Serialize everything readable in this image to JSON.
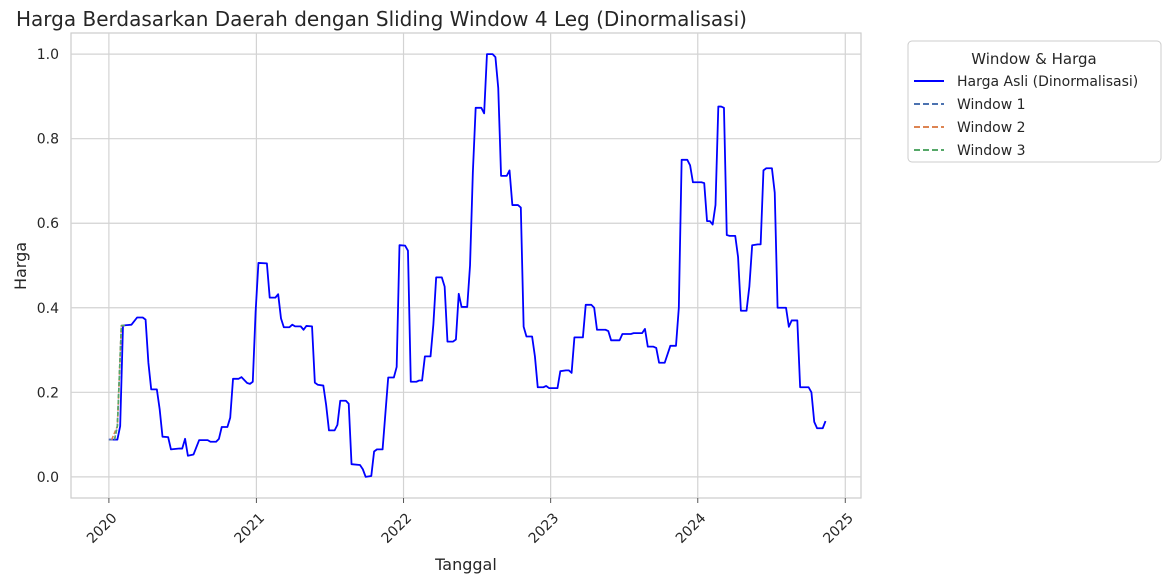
{
  "chart_data": {
    "type": "line",
    "title": "Harga Berdasarkan Daerah dengan Sliding Window 4 Leg (Dinormalisasi)",
    "xlabel": "Tanggal",
    "ylabel": "Harga",
    "xlim": [
      "2019-09-29",
      "2025-02-09"
    ],
    "ylim": [
      -0.05,
      1.05
    ],
    "x_ticks": [
      "2020",
      "2021",
      "2022",
      "2023",
      "2024",
      "2025"
    ],
    "y_ticks": [
      "0.0",
      "0.2",
      "0.4",
      "0.6",
      "0.8",
      "1.0"
    ],
    "grid": true,
    "legend": {
      "title": "Window & Harga",
      "placement": "outside-top-right"
    },
    "series": [
      {
        "name": "Harga Asli (Dinormalisasi)",
        "color": "#0000ff",
        "style": "solid",
        "points": [
          [
            "2020-01-01",
            0.088
          ],
          [
            "2020-01-22",
            0.088
          ],
          [
            "2020-01-29",
            0.12
          ],
          [
            "2020-02-05",
            0.358
          ],
          [
            "2020-02-26",
            0.36
          ],
          [
            "2020-03-11",
            0.377
          ],
          [
            "2020-03-25",
            0.377
          ],
          [
            "2020-04-01",
            0.372
          ],
          [
            "2020-04-08",
            0.27
          ],
          [
            "2020-04-15",
            0.207
          ],
          [
            "2020-04-29",
            0.207
          ],
          [
            "2020-05-06",
            0.16
          ],
          [
            "2020-05-13",
            0.095
          ],
          [
            "2020-05-27",
            0.094
          ],
          [
            "2020-06-03",
            0.065
          ],
          [
            "2020-06-24",
            0.067
          ],
          [
            "2020-07-01",
            0.067
          ],
          [
            "2020-07-08",
            0.09
          ],
          [
            "2020-07-15",
            0.05
          ],
          [
            "2020-07-29",
            0.053
          ],
          [
            "2020-08-12",
            0.087
          ],
          [
            "2020-09-02",
            0.087
          ],
          [
            "2020-09-09",
            0.083
          ],
          [
            "2020-09-23",
            0.083
          ],
          [
            "2020-09-30",
            0.09
          ],
          [
            "2020-10-07",
            0.118
          ],
          [
            "2020-10-21",
            0.118
          ],
          [
            "2020-10-28",
            0.14
          ],
          [
            "2020-11-04",
            0.232
          ],
          [
            "2020-11-18",
            0.232
          ],
          [
            "2020-11-25",
            0.236
          ],
          [
            "2020-12-09",
            0.222
          ],
          [
            "2020-12-16",
            0.22
          ],
          [
            "2020-12-23",
            0.225
          ],
          [
            "2020-12-30",
            0.39
          ],
          [
            "2021-01-06",
            0.506
          ],
          [
            "2021-01-27",
            0.505
          ],
          [
            "2021-02-03",
            0.424
          ],
          [
            "2021-02-17",
            0.424
          ],
          [
            "2021-02-24",
            0.432
          ],
          [
            "2021-03-03",
            0.375
          ],
          [
            "2021-03-10",
            0.354
          ],
          [
            "2021-03-24",
            0.354
          ],
          [
            "2021-03-31",
            0.36
          ],
          [
            "2021-04-07",
            0.356
          ],
          [
            "2021-04-21",
            0.356
          ],
          [
            "2021-04-28",
            0.348
          ],
          [
            "2021-05-05",
            0.357
          ],
          [
            "2021-05-19",
            0.356
          ],
          [
            "2021-05-26",
            0.223
          ],
          [
            "2021-06-02",
            0.218
          ],
          [
            "2021-06-16",
            0.216
          ],
          [
            "2021-06-23",
            0.17
          ],
          [
            "2021-06-30",
            0.11
          ],
          [
            "2021-07-14",
            0.11
          ],
          [
            "2021-07-21",
            0.123
          ],
          [
            "2021-07-28",
            0.18
          ],
          [
            "2021-08-11",
            0.18
          ],
          [
            "2021-08-18",
            0.173
          ],
          [
            "2021-08-25",
            0.03
          ],
          [
            "2021-09-15",
            0.028
          ],
          [
            "2021-09-22",
            0.018
          ],
          [
            "2021-09-29",
            0.0
          ],
          [
            "2021-10-13",
            0.002
          ],
          [
            "2021-10-20",
            0.06
          ],
          [
            "2021-10-27",
            0.065
          ],
          [
            "2021-11-10",
            0.065
          ],
          [
            "2021-11-17",
            0.15
          ],
          [
            "2021-11-24",
            0.235
          ],
          [
            "2021-12-08",
            0.235
          ],
          [
            "2021-12-15",
            0.26
          ],
          [
            "2021-12-22",
            0.548
          ],
          [
            "2022-01-05",
            0.547
          ],
          [
            "2022-01-12",
            0.535
          ],
          [
            "2022-01-19",
            0.225
          ],
          [
            "2022-02-02",
            0.225
          ],
          [
            "2022-02-09",
            0.228
          ],
          [
            "2022-02-16",
            0.228
          ],
          [
            "2022-02-23",
            0.285
          ],
          [
            "2022-03-09",
            0.285
          ],
          [
            "2022-03-16",
            0.36
          ],
          [
            "2022-03-23",
            0.472
          ],
          [
            "2022-04-06",
            0.472
          ],
          [
            "2022-04-13",
            0.45
          ],
          [
            "2022-04-20",
            0.32
          ],
          [
            "2022-05-04",
            0.32
          ],
          [
            "2022-05-11",
            0.325
          ],
          [
            "2022-05-18",
            0.433
          ],
          [
            "2022-05-25",
            0.402
          ],
          [
            "2022-06-08",
            0.402
          ],
          [
            "2022-06-15",
            0.5
          ],
          [
            "2022-06-22",
            0.72
          ],
          [
            "2022-06-29",
            0.873
          ],
          [
            "2022-07-13",
            0.873
          ],
          [
            "2022-07-20",
            0.86
          ],
          [
            "2022-07-27",
            1.0
          ],
          [
            "2022-08-10",
            1.0
          ],
          [
            "2022-08-17",
            0.993
          ],
          [
            "2022-08-24",
            0.92
          ],
          [
            "2022-08-31",
            0.712
          ],
          [
            "2022-09-14",
            0.712
          ],
          [
            "2022-09-21",
            0.725
          ],
          [
            "2022-09-28",
            0.643
          ],
          [
            "2022-10-12",
            0.643
          ],
          [
            "2022-10-19",
            0.637
          ],
          [
            "2022-10-26",
            0.355
          ],
          [
            "2022-11-02",
            0.332
          ],
          [
            "2022-11-16",
            0.332
          ],
          [
            "2022-11-23",
            0.285
          ],
          [
            "2022-11-30",
            0.212
          ],
          [
            "2022-12-14",
            0.212
          ],
          [
            "2022-12-21",
            0.215
          ],
          [
            "2022-12-28",
            0.21
          ],
          [
            "2023-01-18",
            0.21
          ],
          [
            "2023-01-25",
            0.25
          ],
          [
            "2023-02-08",
            0.252
          ],
          [
            "2023-02-15",
            0.252
          ],
          [
            "2023-02-22",
            0.246
          ],
          [
            "2023-03-01",
            0.33
          ],
          [
            "2023-03-22",
            0.33
          ],
          [
            "2023-03-29",
            0.407
          ],
          [
            "2023-04-12",
            0.407
          ],
          [
            "2023-04-19",
            0.4
          ],
          [
            "2023-04-26",
            0.348
          ],
          [
            "2023-05-17",
            0.348
          ],
          [
            "2023-05-24",
            0.345
          ],
          [
            "2023-05-31",
            0.323
          ],
          [
            "2023-06-21",
            0.323
          ],
          [
            "2023-06-28",
            0.338
          ],
          [
            "2023-07-19",
            0.338
          ],
          [
            "2023-07-26",
            0.34
          ],
          [
            "2023-08-16",
            0.34
          ],
          [
            "2023-08-23",
            0.35
          ],
          [
            "2023-08-30",
            0.308
          ],
          [
            "2023-09-13",
            0.308
          ],
          [
            "2023-09-20",
            0.305
          ],
          [
            "2023-09-27",
            0.27
          ],
          [
            "2023-10-11",
            0.27
          ],
          [
            "2023-10-25",
            0.31
          ],
          [
            "2023-11-08",
            0.31
          ],
          [
            "2023-11-15",
            0.4
          ],
          [
            "2023-11-22",
            0.75
          ],
          [
            "2023-12-06",
            0.75
          ],
          [
            "2023-12-13",
            0.737
          ],
          [
            "2023-12-20",
            0.697
          ],
          [
            "2024-01-10",
            0.697
          ],
          [
            "2024-01-17",
            0.695
          ],
          [
            "2024-01-24",
            0.605
          ],
          [
            "2024-01-31",
            0.605
          ],
          [
            "2024-02-07",
            0.597
          ],
          [
            "2024-02-14",
            0.643
          ],
          [
            "2024-02-21",
            0.876
          ],
          [
            "2024-02-28",
            0.876
          ],
          [
            "2024-03-06",
            0.873
          ],
          [
            "2024-03-13",
            0.572
          ],
          [
            "2024-03-20",
            0.57
          ],
          [
            "2024-04-03",
            0.57
          ],
          [
            "2024-04-10",
            0.52
          ],
          [
            "2024-04-17",
            0.393
          ],
          [
            "2024-05-01",
            0.393
          ],
          [
            "2024-05-08",
            0.45
          ],
          [
            "2024-05-15",
            0.548
          ],
          [
            "2024-05-29",
            0.55
          ],
          [
            "2024-06-05",
            0.55
          ],
          [
            "2024-06-12",
            0.725
          ],
          [
            "2024-06-19",
            0.73
          ],
          [
            "2024-07-03",
            0.73
          ],
          [
            "2024-07-10",
            0.672
          ],
          [
            "2024-07-17",
            0.4
          ],
          [
            "2024-07-31",
            0.4
          ],
          [
            "2024-08-07",
            0.4
          ],
          [
            "2024-08-14",
            0.355
          ],
          [
            "2024-08-21",
            0.37
          ],
          [
            "2024-09-04",
            0.37
          ],
          [
            "2024-09-11",
            0.212
          ],
          [
            "2024-10-02",
            0.212
          ],
          [
            "2024-10-09",
            0.2
          ],
          [
            "2024-10-16",
            0.13
          ],
          [
            "2024-10-23",
            0.115
          ],
          [
            "2024-11-06",
            0.115
          ],
          [
            "2024-11-13",
            0.132
          ]
        ]
      },
      {
        "name": "Window 1",
        "color": "#4c72b0",
        "style": "dashed",
        "points": [
          [
            "2020-01-01",
            0.088
          ],
          [
            "2020-01-15",
            0.088
          ],
          [
            "2020-01-22",
            0.12
          ],
          [
            "2020-02-01",
            0.358
          ]
        ]
      },
      {
        "name": "Window 2",
        "color": "#dd8452",
        "style": "dashed",
        "points": [
          [
            "2020-01-08",
            0.088
          ],
          [
            "2020-01-22",
            0.12
          ],
          [
            "2020-02-01",
            0.358
          ],
          [
            "2020-02-08",
            0.358
          ]
        ]
      },
      {
        "name": "Window 3",
        "color": "#55a868",
        "style": "dashed",
        "points": [
          [
            "2020-01-15",
            0.088
          ],
          [
            "2020-01-22",
            0.12
          ],
          [
            "2020-02-01",
            0.358
          ],
          [
            "2020-02-12",
            0.358
          ]
        ]
      }
    ]
  }
}
